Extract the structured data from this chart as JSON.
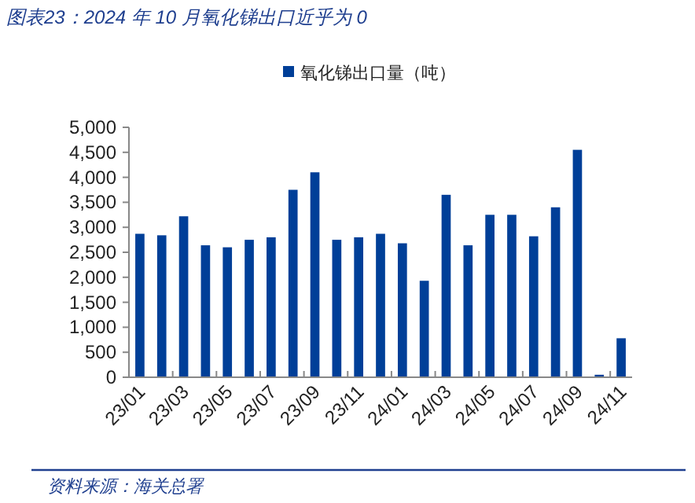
{
  "chart_data": {
    "type": "bar",
    "title": "图表23：2024 年 10 月氧化锑出口近乎为 0",
    "categories": [
      "23/01",
      null,
      "23/03",
      null,
      "23/05",
      null,
      "23/07",
      null,
      "23/09",
      null,
      "23/11",
      null,
      "24/01",
      null,
      "24/03",
      null,
      "24/05",
      null,
      "24/07",
      null,
      "24/09",
      null,
      "24/11"
    ],
    "series": [
      {
        "name": "氧化锑出口量（吨）",
        "color": "#003f98",
        "values": [
          2870,
          2840,
          3220,
          2640,
          2600,
          2750,
          2800,
          3750,
          4100,
          2750,
          2800,
          2870,
          2680,
          1930,
          3650,
          2640,
          3250,
          3250,
          2820,
          3400,
          4550,
          50,
          780
        ]
      }
    ],
    "ylim": [
      0,
      5000
    ],
    "yticks": [
      0,
      500,
      {
        "value": 1000,
        "label": "1,000"
      },
      {
        "value": 1500,
        "label": "1,500"
      },
      {
        "value": 2000,
        "label": "2,000"
      },
      {
        "value": 2500,
        "label": "2,500"
      },
      {
        "value": 3000,
        "label": "3,000"
      },
      {
        "value": 3500,
        "label": "3,500"
      },
      {
        "value": 4000,
        "label": "4,000"
      },
      {
        "value": 4500,
        "label": "4,500"
      },
      {
        "value": 5000,
        "label": "5,000"
      }
    ],
    "legend": "top",
    "annotations": [
      "资料来源：海关总署"
    ]
  }
}
